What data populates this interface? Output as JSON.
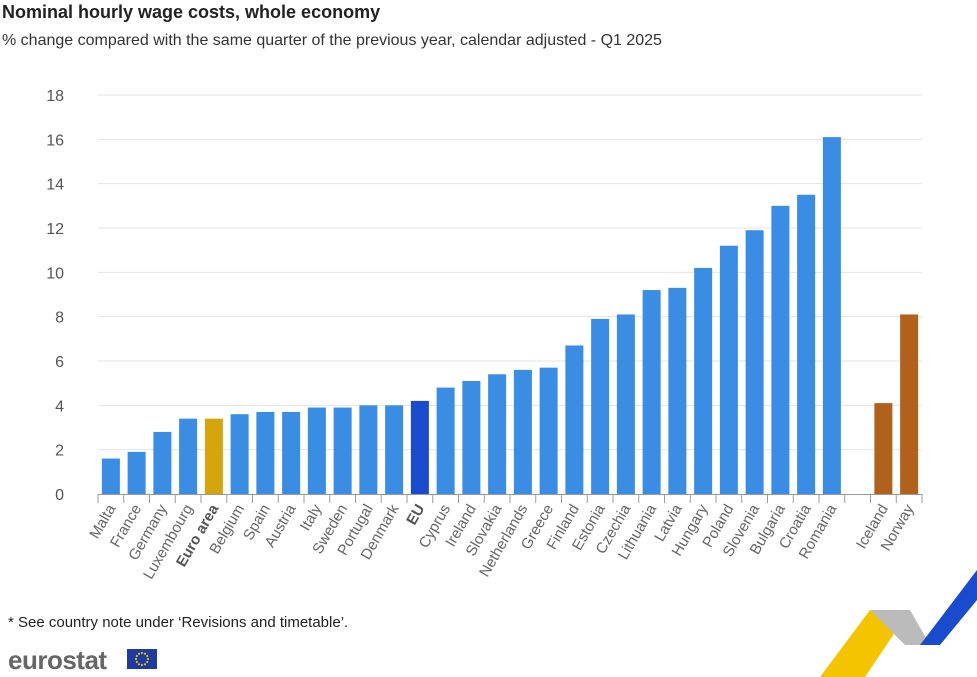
{
  "chart_data": {
    "type": "bar",
    "title": "Nominal hourly wage costs, whole economy",
    "subtitle": "% change compared with the same quarter of the previous year, calendar adjusted - Q1 2025",
    "categories": [
      "Malta",
      "France",
      "Germany",
      "Luxembourg",
      "Euro area",
      "Belgium",
      "Spain",
      "Austria",
      "Italy",
      "Sweden",
      "Portugal",
      "Denmark",
      "EU",
      "Cyprus",
      "Ireland",
      "Slovakia",
      "Netherlands",
      "Greece",
      "Finland",
      "Estonia",
      "Czechia",
      "Lithuania",
      "Latvia",
      "Hungary",
      "Poland",
      "Slovenia",
      "Bulgaria",
      "Croatia",
      "Romania",
      "",
      "Iceland",
      "Norway"
    ],
    "values": [
      1.6,
      1.9,
      2.8,
      3.4,
      3.4,
      3.6,
      3.7,
      3.7,
      3.9,
      3.9,
      4.0,
      4.0,
      4.2,
      4.8,
      5.1,
      5.4,
      5.6,
      5.7,
      6.7,
      7.9,
      8.1,
      9.2,
      9.3,
      10.2,
      11.2,
      11.9,
      13.0,
      13.5,
      16.1,
      null,
      4.1,
      8.1
    ],
    "bold_categories": [
      "Euro area",
      "EU"
    ],
    "ylim": [
      0,
      18
    ],
    "yticks": [
      0,
      2,
      4,
      6,
      8,
      10,
      12,
      14,
      16,
      18
    ],
    "xlabel": "",
    "ylabel": "",
    "grid": true,
    "colors": {
      "default": "#3b8ce3",
      "Euro area": "#d4a50c",
      "EU": "#1a4bcc",
      "Iceland": "#b0611c",
      "Norway": "#b0611c"
    }
  },
  "footer": {
    "note": "* See country note under ‘Revisions and timetable’.",
    "logo": "eurostat"
  }
}
